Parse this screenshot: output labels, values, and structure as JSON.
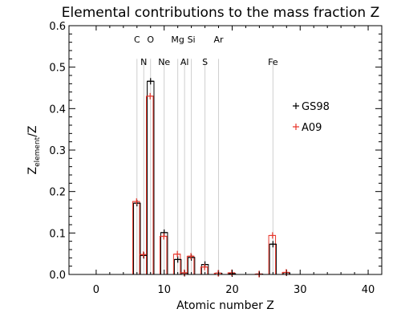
{
  "chart_data": {
    "type": "bar",
    "title": "Elemental contributions to the mass fraction Z",
    "xlabel": "Atomic number Z",
    "ylabel_main": "Z",
    "ylabel_sub": "element",
    "ylabel_tail": "/Z",
    "xlim": [
      -4,
      42
    ],
    "ylim": [
      0,
      0.6
    ],
    "xticks": [
      0,
      10,
      20,
      30,
      40
    ],
    "yticks": [
      0.0,
      0.1,
      0.2,
      0.3,
      0.4,
      0.5,
      0.6
    ],
    "ytick_labels": [
      "0.0",
      "0.1",
      "0.2",
      "0.3",
      "0.4",
      "0.5",
      "0.6"
    ],
    "element_markers": [
      {
        "symbol": "C",
        "z": 6,
        "row": 1
      },
      {
        "symbol": "N",
        "z": 7,
        "row": 2
      },
      {
        "symbol": "O",
        "z": 8,
        "row": 1
      },
      {
        "symbol": "Ne",
        "z": 10,
        "row": 2
      },
      {
        "symbol": "Mg",
        "z": 12,
        "row": 1
      },
      {
        "symbol": "Al",
        "z": 13,
        "row": 2
      },
      {
        "symbol": "Si",
        "z": 14,
        "row": 1
      },
      {
        "symbol": "S",
        "z": 16,
        "row": 2
      },
      {
        "symbol": "Ar",
        "z": 18,
        "row": 1
      },
      {
        "symbol": "Fe",
        "z": 26,
        "row": 2
      }
    ],
    "series": [
      {
        "name": "GS98",
        "color": "#000000",
        "z": [
          6,
          7,
          8,
          10,
          12,
          13,
          14,
          16,
          18,
          20,
          24,
          26,
          28
        ],
        "values": [
          0.172,
          0.046,
          0.466,
          0.101,
          0.036,
          0.003,
          0.041,
          0.024,
          0.003,
          0.002,
          0.001,
          0.073,
          0.004
        ]
      },
      {
        "name": "A09",
        "color": "#e8362b",
        "z": [
          6,
          7,
          8,
          10,
          12,
          13,
          14,
          16,
          18,
          20,
          24,
          26,
          28
        ],
        "values": [
          0.176,
          0.048,
          0.43,
          0.092,
          0.049,
          0.004,
          0.044,
          0.018,
          0.003,
          0.004,
          0.001,
          0.094,
          0.005
        ]
      }
    ]
  }
}
